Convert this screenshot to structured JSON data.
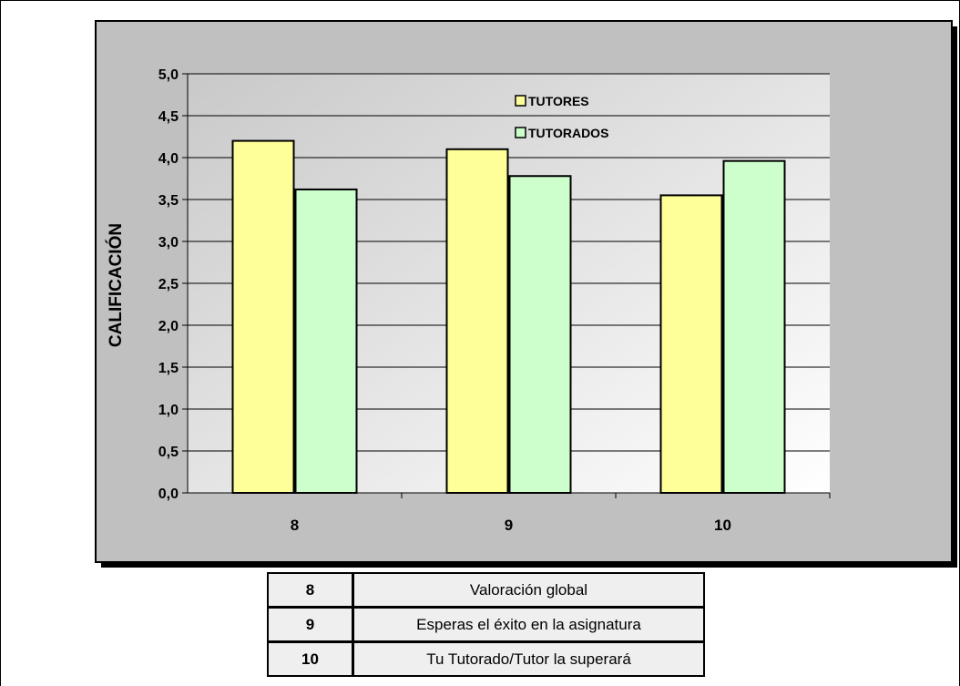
{
  "chart_data": {
    "type": "bar",
    "categories": [
      "8",
      "9",
      "10"
    ],
    "series": [
      {
        "name": "TUTORES",
        "values": [
          4.2,
          4.1,
          3.55
        ]
      },
      {
        "name": "TUTORADOS",
        "values": [
          3.62,
          3.78,
          3.96
        ]
      }
    ],
    "title": "",
    "xlabel": "",
    "ylabel": "CALIFICACIÓN",
    "ylim": [
      0,
      5
    ],
    "yticks": [
      "0,0",
      "0,5",
      "1,0",
      "1,5",
      "2,0",
      "2,5",
      "3,0",
      "3,5",
      "4,0",
      "4,5",
      "5,0"
    ],
    "grid": true,
    "legend_position": "top-right",
    "colors": {
      "TUTORES": "#ffff99",
      "TUTORADOS": "#ccffcc",
      "frame": "#c0c0c0"
    }
  },
  "legend_table": [
    {
      "code": "8",
      "description": "Valoración global"
    },
    {
      "code": "9",
      "description": "Esperas el éxito en la asignatura"
    },
    {
      "code": "10",
      "description": "Tu Tutorado/Tutor  la superará"
    }
  ]
}
